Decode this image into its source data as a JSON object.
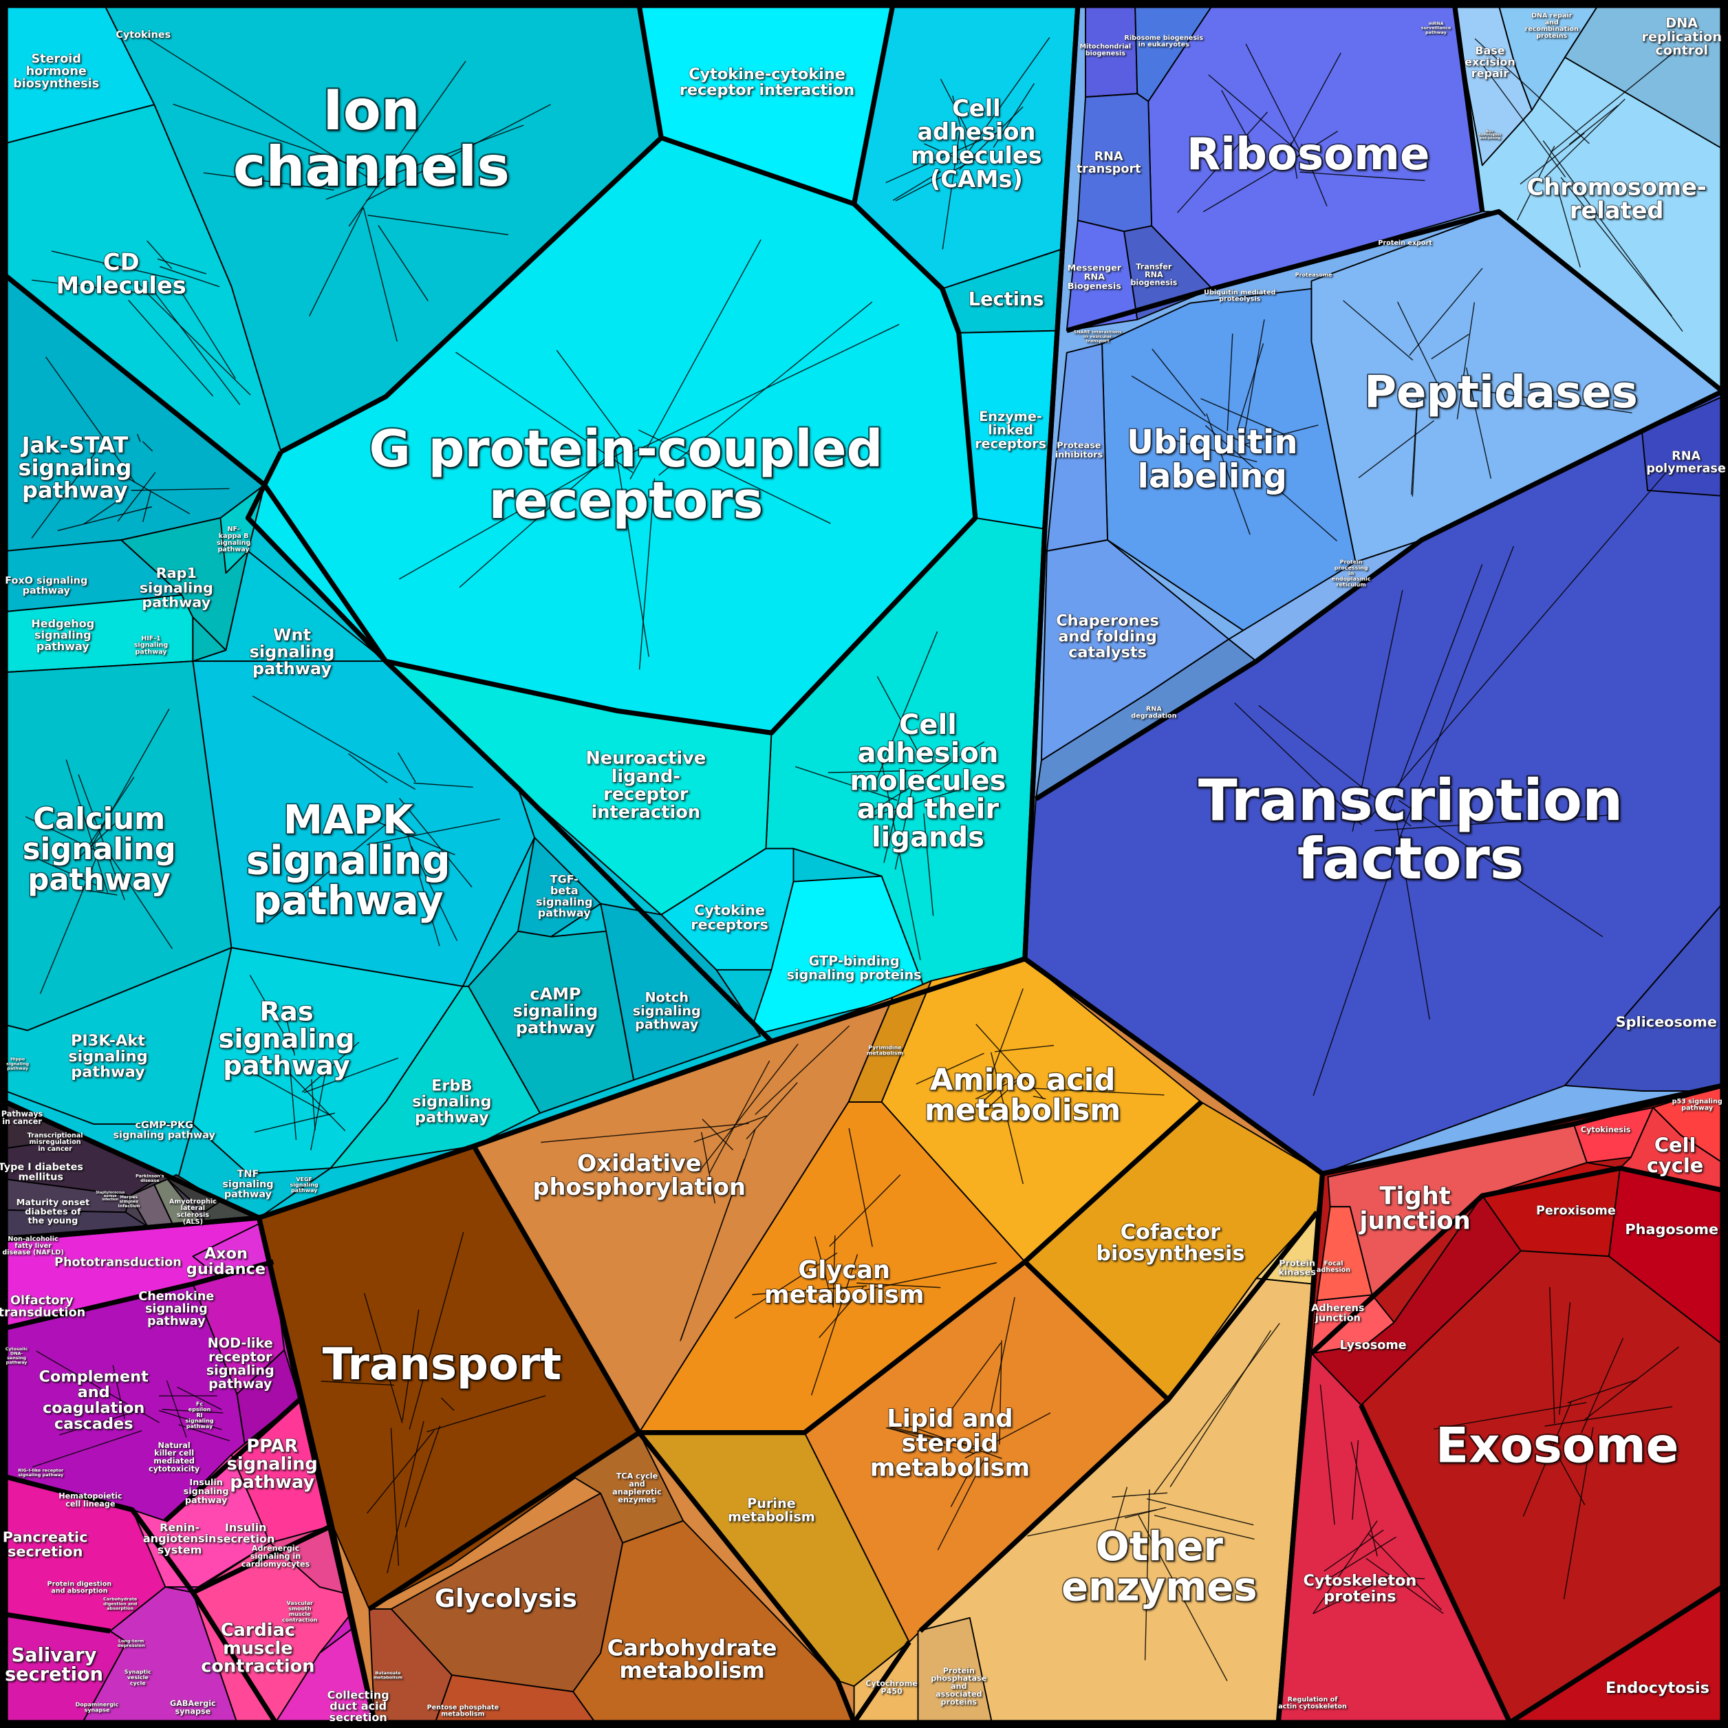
{
  "regions": [
    {
      "id": "cyan-base",
      "color": "#00c4d8"
    },
    {
      "id": "ion-channels",
      "color": "#00c2d2"
    },
    {
      "id": "steroid",
      "color": "#00d8f0"
    },
    {
      "id": "cd-molecules",
      "color": "#00d0dc"
    },
    {
      "id": "cytokine-cytokine",
      "color": "#00f0ff"
    },
    {
      "id": "cams",
      "color": "#06d0ec"
    },
    {
      "id": "lectins",
      "color": "#00c8d8"
    },
    {
      "id": "enzyme-linked",
      "color": "#00e0f8"
    },
    {
      "id": "gpcr",
      "color": "#00e8f4"
    },
    {
      "id": "cam-ligands",
      "color": "#00e2dc"
    },
    {
      "id": "neuroactive",
      "color": "#00e8e0"
    },
    {
      "id": "cytokine-receptors",
      "color": "#00dcf0"
    },
    {
      "id": "gtp-binding",
      "color": "#00f4ff"
    },
    {
      "id": "jak-stat",
      "color": "#00b0c8"
    },
    {
      "id": "foxo",
      "color": "#00b4cc"
    },
    {
      "id": "hedgehog",
      "color": "#00e0dc"
    },
    {
      "id": "rap1",
      "color": "#00b8b8"
    },
    {
      "id": "nfkb",
      "color": "#00cccc"
    },
    {
      "id": "hif1",
      "color": "#00b8b8"
    },
    {
      "id": "wnt",
      "color": "#00c8dc"
    },
    {
      "id": "mapk",
      "color": "#00c4e0"
    },
    {
      "id": "calcium",
      "color": "#00c0cc"
    },
    {
      "id": "tgf-beta",
      "color": "#00b0c8"
    },
    {
      "id": "camp",
      "color": "#00b4c0"
    },
    {
      "id": "notch",
      "color": "#00b0c8"
    },
    {
      "id": "pi3k",
      "color": "#00c8d4"
    },
    {
      "id": "ras",
      "color": "#00d4e0"
    },
    {
      "id": "erbb",
      "color": "#00d4d0"
    },
    {
      "id": "tnf",
      "color": "#00c0d4"
    },
    {
      "id": "disease-base",
      "color": "#4a4050"
    },
    {
      "id": "pathways-cancer",
      "color": "#3a2a38"
    },
    {
      "id": "transcriptional-misreg",
      "color": "#3c2840"
    },
    {
      "id": "type1-diabetes",
      "color": "#4a3c55"
    },
    {
      "id": "mody",
      "color": "#443a55"
    },
    {
      "id": "nafld",
      "color": "#6a6a5a"
    },
    {
      "id": "staph",
      "color": "#706070"
    },
    {
      "id": "herpes",
      "color": "#788070"
    },
    {
      "id": "parkinsons",
      "color": "#3c3c3c"
    },
    {
      "id": "als",
      "color": "#464a46"
    },
    {
      "id": "magenta-base",
      "color": "#d020c0"
    },
    {
      "id": "phototransduction",
      "color": "#e828d8"
    },
    {
      "id": "axon",
      "color": "#e030d8"
    },
    {
      "id": "chemokine",
      "color": "#c818b8"
    },
    {
      "id": "nod-like",
      "color": "#a80ca8"
    },
    {
      "id": "complement",
      "color": "#b010b8"
    },
    {
      "id": "ppar",
      "color": "#ff3898"
    },
    {
      "id": "insulin-renin",
      "color": "#ff48b0"
    },
    {
      "id": "pancreatic",
      "color": "#e818a0"
    },
    {
      "id": "salivary",
      "color": "#d818a8"
    },
    {
      "id": "synapse",
      "color": "#c830c0"
    },
    {
      "id": "cardiac",
      "color": "#ff4898"
    },
    {
      "id": "adrenergic",
      "color": "#e84890"
    },
    {
      "id": "collecting-duct",
      "color": "#e830c0"
    },
    {
      "id": "blue-base",
      "color": "#78b0f0"
    },
    {
      "id": "mitochondrial",
      "color": "#5a5ee0"
    },
    {
      "id": "ribosome-biogenesis",
      "color": "#4a78e0"
    },
    {
      "id": "ribosome",
      "color": "#6470f0"
    },
    {
      "id": "rna-transport",
      "color": "#5070e0"
    },
    {
      "id": "messenger-rna",
      "color": "#6070f0"
    },
    {
      "id": "transfer-rna",
      "color": "#4a60c8"
    },
    {
      "id": "chromosome",
      "color": "#98d8fa"
    },
    {
      "id": "dna-repair",
      "color": "#88c8f5"
    },
    {
      "id": "base-excision",
      "color": "#9ccdf8"
    },
    {
      "id": "dna-replication",
      "color": "#80bce0"
    },
    {
      "id": "peptidases",
      "color": "#80b8f5"
    },
    {
      "id": "ubiquitin",
      "color": "#5c9ef0"
    },
    {
      "id": "protease-inhibitors",
      "color": "#6a9cf0"
    },
    {
      "id": "chaperones",
      "color": "#6c9ef0"
    },
    {
      "id": "rna-degradation",
      "color": "#5c8cd0"
    },
    {
      "id": "protein-processing",
      "color": "#80b0f0"
    },
    {
      "id": "transcription-factors",
      "color": "#4252c8"
    },
    {
      "id": "rna-polymerase",
      "color": "#3c48c0"
    },
    {
      "id": "spliceosome",
      "color": "#3e50c0"
    },
    {
      "id": "orange-base",
      "color": "#d88840"
    },
    {
      "id": "transport",
      "color": "#8c4000"
    },
    {
      "id": "oxphos",
      "color": "#d88840"
    },
    {
      "id": "pyrimidine",
      "color": "#d89018"
    },
    {
      "id": "amino-acid",
      "color": "#f8b020"
    },
    {
      "id": "glycan",
      "color": "#f09018"
    },
    {
      "id": "cofactor",
      "color": "#e8a018"
    },
    {
      "id": "lipid",
      "color": "#e88828"
    },
    {
      "id": "protein-kinases",
      "color": "#f5d37a"
    },
    {
      "id": "other-enzymes",
      "color": "#f0c070"
    },
    {
      "id": "purine",
      "color": "#d49a20"
    },
    {
      "id": "cytochrome",
      "color": "#f0b860"
    },
    {
      "id": "phosphatase",
      "color": "#e0b068"
    },
    {
      "id": "glycolysis",
      "color": "#a85a28"
    },
    {
      "id": "tca",
      "color": "#b26a28"
    },
    {
      "id": "carbohydrate",
      "color": "#c06820"
    },
    {
      "id": "butanoate",
      "color": "#b04e30"
    },
    {
      "id": "pentose",
      "color": "#c05028"
    },
    {
      "id": "red-base",
      "color": "#b81818"
    },
    {
      "id": "tight-junction",
      "color": "#ec5858"
    },
    {
      "id": "focal-adhesion",
      "color": "#ff6050"
    },
    {
      "id": "adherens",
      "color": "#ff5a60"
    },
    {
      "id": "cytokinesis",
      "color": "#ff3c4c"
    },
    {
      "id": "p53",
      "color": "#ff4040"
    },
    {
      "id": "cell-cycle",
      "color": "#f23c44"
    },
    {
      "id": "peroxisome",
      "color": "#c01010"
    },
    {
      "id": "phagosome",
      "color": "#c00018"
    },
    {
      "id": "exosome",
      "color": "#b81818"
    },
    {
      "id": "lysosome",
      "color": "#b00818"
    },
    {
      "id": "cytoskeleton",
      "color": "#e02848"
    },
    {
      "id": "endocytosis",
      "color": "#c20c18"
    }
  ],
  "labels": {
    "ion_channels": [
      "Ion",
      "channels"
    ],
    "gpcr": [
      "G protein-coupled",
      "receptors"
    ],
    "cytokine_cytokine": [
      "Cytokine-cytokine",
      "receptor interaction"
    ],
    "cams": [
      "Cell",
      "adhesion",
      "molecules",
      "(CAMs)"
    ],
    "lectins": [
      "Lectins"
    ],
    "enzyme_linked": [
      "Enzyme-",
      "linked",
      "receptors"
    ],
    "cd_molecules": [
      "CD",
      "Molecules"
    ],
    "steroid": [
      "Steroid",
      "hormone",
      "biosynthesis"
    ],
    "cytokines": [
      "Cytokines"
    ],
    "jak_stat": [
      "Jak-STAT",
      "signaling",
      "pathway"
    ],
    "foxo": [
      "FoxO signaling",
      "pathway"
    ],
    "hedgehog": [
      "Hedgehog",
      "signaling",
      "pathway"
    ],
    "rap1": [
      "Rap1",
      "signaling",
      "pathway"
    ],
    "nfkb": [
      "NF-",
      "kappa B",
      "signaling",
      "pathway"
    ],
    "hif1": [
      "HIF-1",
      "signaling",
      "pathway"
    ],
    "wnt": [
      "Wnt",
      "signaling",
      "pathway"
    ],
    "calcium": [
      "Calcium",
      "signaling",
      "pathway"
    ],
    "mapk": [
      "MAPK",
      "signaling",
      "pathway"
    ],
    "tgf_beta": [
      "TGF-",
      "beta",
      "signaling",
      "pathway"
    ],
    "neuroactive": [
      "Neuroactive",
      "ligand-",
      "receptor",
      "interaction"
    ],
    "cam_ligands": [
      "Cell",
      "adhesion",
      "molecules",
      "and their",
      "ligands"
    ],
    "cytokine_receptors": [
      "Cytokine",
      "receptors"
    ],
    "gtp_binding": [
      "GTP-binding",
      "signaling proteins"
    ],
    "camp": [
      "cAMP",
      "signaling",
      "pathway"
    ],
    "notch": [
      "Notch",
      "signaling",
      "pathway"
    ],
    "pi3k": [
      "PI3K-Akt",
      "signaling",
      "pathway"
    ],
    "ras": [
      "Ras",
      "signaling",
      "pathway"
    ],
    "erbb": [
      "ErbB",
      "signaling",
      "pathway"
    ],
    "cgmp": [
      "cGMP-PKG",
      "signaling pathway"
    ],
    "tnf": [
      "TNF",
      "signaling",
      "pathway"
    ],
    "vegf": [
      "VEGF",
      "signaling",
      "pathway"
    ],
    "hippo": [
      "Hippo",
      "signaling",
      "pathway"
    ],
    "pathways_cancer": [
      "Pathways",
      "in cancer"
    ],
    "transcriptional_misreg": [
      "Transcriptional",
      "misregulation",
      "in cancer"
    ],
    "type1_diabetes": [
      "Type I diabetes",
      "mellitus"
    ],
    "mody": [
      "Maturity onset",
      "diabetes of",
      "the young"
    ],
    "nafld": [
      "Non-alcoholic",
      "fatty liver",
      "disease (NAFLD)"
    ],
    "staph": [
      "Staphylococcus",
      "aureus",
      "infection"
    ],
    "herpes": [
      "Herpes",
      "simplex",
      "infection"
    ],
    "parkinsons": [
      "Parkinson's",
      "disease"
    ],
    "als": [
      "Amyotrophic",
      "lateral",
      "sclerosis",
      "(ALS)"
    ],
    "phototransduction": [
      "Phototransduction"
    ],
    "axon": [
      "Axon",
      "guidance"
    ],
    "olfactory": [
      "Olfactory",
      "transduction"
    ],
    "chemokine": [
      "Chemokine",
      "signaling",
      "pathway"
    ],
    "nod_like": [
      "NOD-like",
      "receptor",
      "signaling",
      "pathway"
    ],
    "complement": [
      "Complement",
      "and",
      "coagulation",
      "cascades"
    ],
    "cytosolic_dna": [
      "Cytosolic",
      "DNA-",
      "sensing",
      "pathway"
    ],
    "fc_epsilon": [
      "Fc",
      "epsilon",
      "RI",
      "signaling",
      "pathway"
    ],
    "natural_killer": [
      "Natural",
      "killer cell",
      "mediated",
      "cytotoxicity"
    ],
    "rig_i": [
      "RIG-I-like receptor",
      "signaling pathway"
    ],
    "hematopoietic": [
      "Hematopoietic",
      "cell lineage"
    ],
    "ppar": [
      "PPAR",
      "signaling",
      "pathway"
    ],
    "insulin_signaling": [
      "Insulin",
      "signaling",
      "pathway"
    ],
    "renin": [
      "Renin-",
      "angiotensin",
      "system"
    ],
    "insulin_secretion": [
      "Insulin",
      "secretion"
    ],
    "adrenergic": [
      "Adrenergic",
      "signaling in",
      "cardiomyocytes"
    ],
    "pancreatic": [
      "Pancreatic",
      "secretion"
    ],
    "protein_digestion": [
      "Protein digestion",
      "and absorption"
    ],
    "carb_digestion": [
      "Carbohydrate",
      "digestion and",
      "absorption"
    ],
    "ltd": [
      "Long-term",
      "depression"
    ],
    "salivary": [
      "Salivary",
      "secretion"
    ],
    "cardiac": [
      "Cardiac",
      "muscle",
      "contraction"
    ],
    "vascular": [
      "Vascular",
      "smooth",
      "muscle",
      "contraction"
    ],
    "synaptic_vesicle": [
      "Synaptic",
      "vesicle",
      "cycle"
    ],
    "dopaminergic": [
      "Dopaminergic",
      "synapse"
    ],
    "gabaergic": [
      "GABAergic",
      "synapse"
    ],
    "collecting_duct": [
      "Collecting",
      "duct acid",
      "secretion"
    ],
    "transport": [
      "Transport"
    ],
    "oxphos": [
      "Oxidative",
      "phosphorylation"
    ],
    "pyrimidine": [
      "Pyrimidine",
      "metabolism"
    ],
    "amino_acid": [
      "Amino acid",
      "metabolism"
    ],
    "glycan": [
      "Glycan",
      "metabolism"
    ],
    "cofactor": [
      "Cofactor",
      "biosynthesis"
    ],
    "protein_kinases": [
      "Protein",
      "kinases"
    ],
    "lipid": [
      "Lipid and",
      "steroid",
      "metabolism"
    ],
    "purine": [
      "Purine",
      "metabolism"
    ],
    "other_enzymes": [
      "Other",
      "enzymes"
    ],
    "glycolysis": [
      "Glycolysis"
    ],
    "tca": [
      "TCA cycle",
      "and",
      "anaplerotic",
      "enzymes"
    ],
    "carbohydrate": [
      "Carbohydrate",
      "metabolism"
    ],
    "butanoate": [
      "Butanoate",
      "metabolism"
    ],
    "pentose": [
      "Pentose phosphate",
      "metabolism"
    ],
    "cytochrome": [
      "Cytochrome",
      "P450"
    ],
    "phosphatase": [
      "Protein",
      "phosphatase",
      "and",
      "associated",
      "proteins"
    ],
    "ribosome": [
      "Ribosome"
    ],
    "rna_transport": [
      "RNA",
      "transport"
    ],
    "mitochondrial": [
      "Mitochondrial",
      "biogenesis"
    ],
    "ribosome_biogenesis": [
      "Ribosome biogenesis",
      "in eukaryotes"
    ],
    "mrna_surveillance": [
      "mRNA",
      "surveillance",
      "pathway"
    ],
    "messenger_rna": [
      "Messenger",
      "RNA",
      "Biogenesis"
    ],
    "transfer_rna": [
      "Transfer",
      "RNA",
      "biogenesis"
    ],
    "dna_repair": [
      "DNA repair",
      "and",
      "recombination",
      "proteins"
    ],
    "base_excision": [
      "Base",
      "excision",
      "repair"
    ],
    "dna_replication": [
      "DNA",
      "replication",
      "control"
    ],
    "nhej": [
      "Non-",
      "homologous",
      "end-joining"
    ],
    "chromosome": [
      "Chromosome-",
      "related"
    ],
    "protein_export": [
      "Protein export"
    ],
    "proteasome": [
      "Proteasome"
    ],
    "ubiquitin_proteolysis": [
      "Ubiquitin mediated",
      "proteolysis"
    ],
    "snare": [
      "SNARE interactions",
      "in vesicular",
      "transport"
    ],
    "peptidases": [
      "Peptidases"
    ],
    "protease_inhibitors": [
      "Protease",
      "inhibitors"
    ],
    "ubiquitin": [
      "Ubiquitin",
      "labeling"
    ],
    "rna_polymerase": [
      "RNA",
      "polymerase"
    ],
    "protein_processing": [
      "Protein",
      "processing",
      "in",
      "endoplasmic",
      "reticulum"
    ],
    "chaperones": [
      "Chaperones",
      "and folding",
      "catalysts"
    ],
    "rna_degradation": [
      "RNA",
      "degradation"
    ],
    "transcription_factors": [
      "Transcription",
      "factors"
    ],
    "spliceosome": [
      "Spliceosome"
    ],
    "tight_junction": [
      "Tight",
      "junction"
    ],
    "cytokinesis": [
      "Cytokinesis"
    ],
    "p53": [
      "p53 signaling",
      "pathway"
    ],
    "cell_cycle": [
      "Cell",
      "cycle"
    ],
    "peroxisome": [
      "Peroxisome"
    ],
    "phagosome": [
      "Phagosome"
    ],
    "focal_adhesion": [
      "Focal",
      "adhesion"
    ],
    "adherens": [
      "Adherens",
      "junction"
    ],
    "lysosome": [
      "Lysosome"
    ],
    "exosome": [
      "Exosome"
    ],
    "cytoskeleton": [
      "Cytoskeleton",
      "proteins"
    ],
    "endocytosis": [
      "Endocytosis"
    ],
    "actin": [
      "Regulation of",
      "actin cytoskeleton"
    ]
  }
}
